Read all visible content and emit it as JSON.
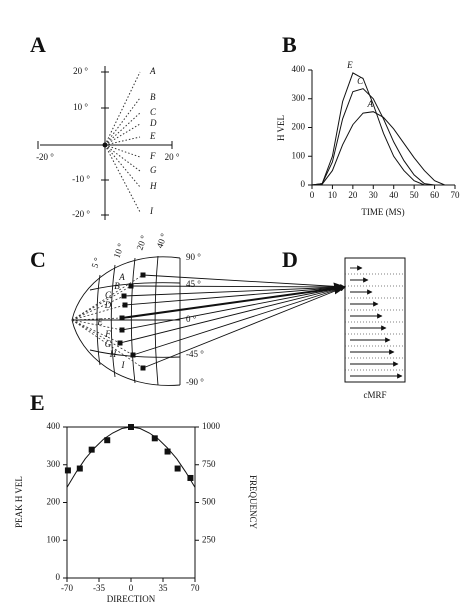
{
  "chart_data": [
    {
      "type": "line",
      "title": "B",
      "x_label": "TIME (MS)",
      "y_label": "H VEL",
      "x": [
        0,
        5,
        10,
        15,
        20,
        25,
        30,
        35,
        40,
        45,
        50,
        55,
        60,
        65,
        70
      ],
      "series": [
        {
          "name": "E",
          "color": "#111",
          "values": [
            0,
            5,
            100,
            290,
            390,
            370,
            280,
            180,
            100,
            50,
            15,
            0,
            null,
            null,
            null
          ]
        },
        {
          "name": "C",
          "color": "#111",
          "values": [
            0,
            5,
            80,
            230,
            325,
            335,
            300,
            230,
            150,
            85,
            35,
            5,
            0,
            null,
            null
          ]
        },
        {
          "name": "A",
          "color": "#111",
          "values": [
            0,
            3,
            50,
            140,
            210,
            250,
            255,
            235,
            195,
            145,
            95,
            50,
            15,
            0,
            null
          ]
        }
      ],
      "xlim": [
        0,
        70
      ],
      "xticks": [
        0,
        10,
        20,
        30,
        40,
        50,
        60,
        70
      ],
      "ylim": [
        0,
        400
      ],
      "yticks": [
        0,
        100,
        200,
        300,
        400
      ]
    },
    {
      "type": "scatter",
      "title": "E",
      "x_label": "DIRECTION",
      "y_label": "PEAK H VEL",
      "y2_label": "FREQUENCY",
      "series": [
        {
          "style": "square",
          "color": "#111",
          "x": [
            -69,
            -56,
            -43,
            -26,
            0,
            26,
            40,
            51,
            65
          ],
          "values": [
            285,
            290,
            340,
            365,
            400,
            370,
            335,
            290,
            265
          ]
        },
        {
          "style": "line",
          "axis": "y2",
          "color": "#111",
          "x": [
            -70,
            -60,
            -50,
            -40,
            -30,
            -20,
            -10,
            0,
            10,
            20,
            30,
            40,
            50,
            60,
            70
          ],
          "values": [
            600,
            700,
            790,
            860,
            920,
            960,
            990,
            1000,
            990,
            960,
            920,
            860,
            790,
            700,
            600
          ]
        }
      ],
      "xlim": [
        -70,
        70
      ],
      "xticks": [
        -70,
        -35,
        0,
        35,
        70
      ],
      "ylim": [
        0,
        400
      ],
      "yticks": [
        0,
        100,
        200,
        300,
        400
      ],
      "y2lim": [
        0,
        1000
      ],
      "y2ticks": [
        250,
        500,
        750,
        1000
      ]
    }
  ],
  "panel_a": {
    "title": "A",
    "axis_labels": [
      "20 °",
      "10 °",
      "-10 °",
      "-20 °",
      "-20 °",
      "20 °"
    ],
    "targets": [
      "A",
      "B",
      "C",
      "D",
      "E",
      "F",
      "G",
      "H",
      "I"
    ]
  },
  "panel_c": {
    "title": "C",
    "amplitude_labels": [
      "5 °",
      "10 °",
      "20 °",
      "40 °"
    ],
    "direction_labels": [
      "90 °",
      "45 °",
      "0 °",
      "-45 °",
      "-90 °"
    ],
    "targets": [
      "A",
      "B",
      "C",
      "D",
      "E",
      "F",
      "G",
      "H",
      "I"
    ]
  },
  "panel_d": {
    "title": "D",
    "label": "cMRF"
  }
}
